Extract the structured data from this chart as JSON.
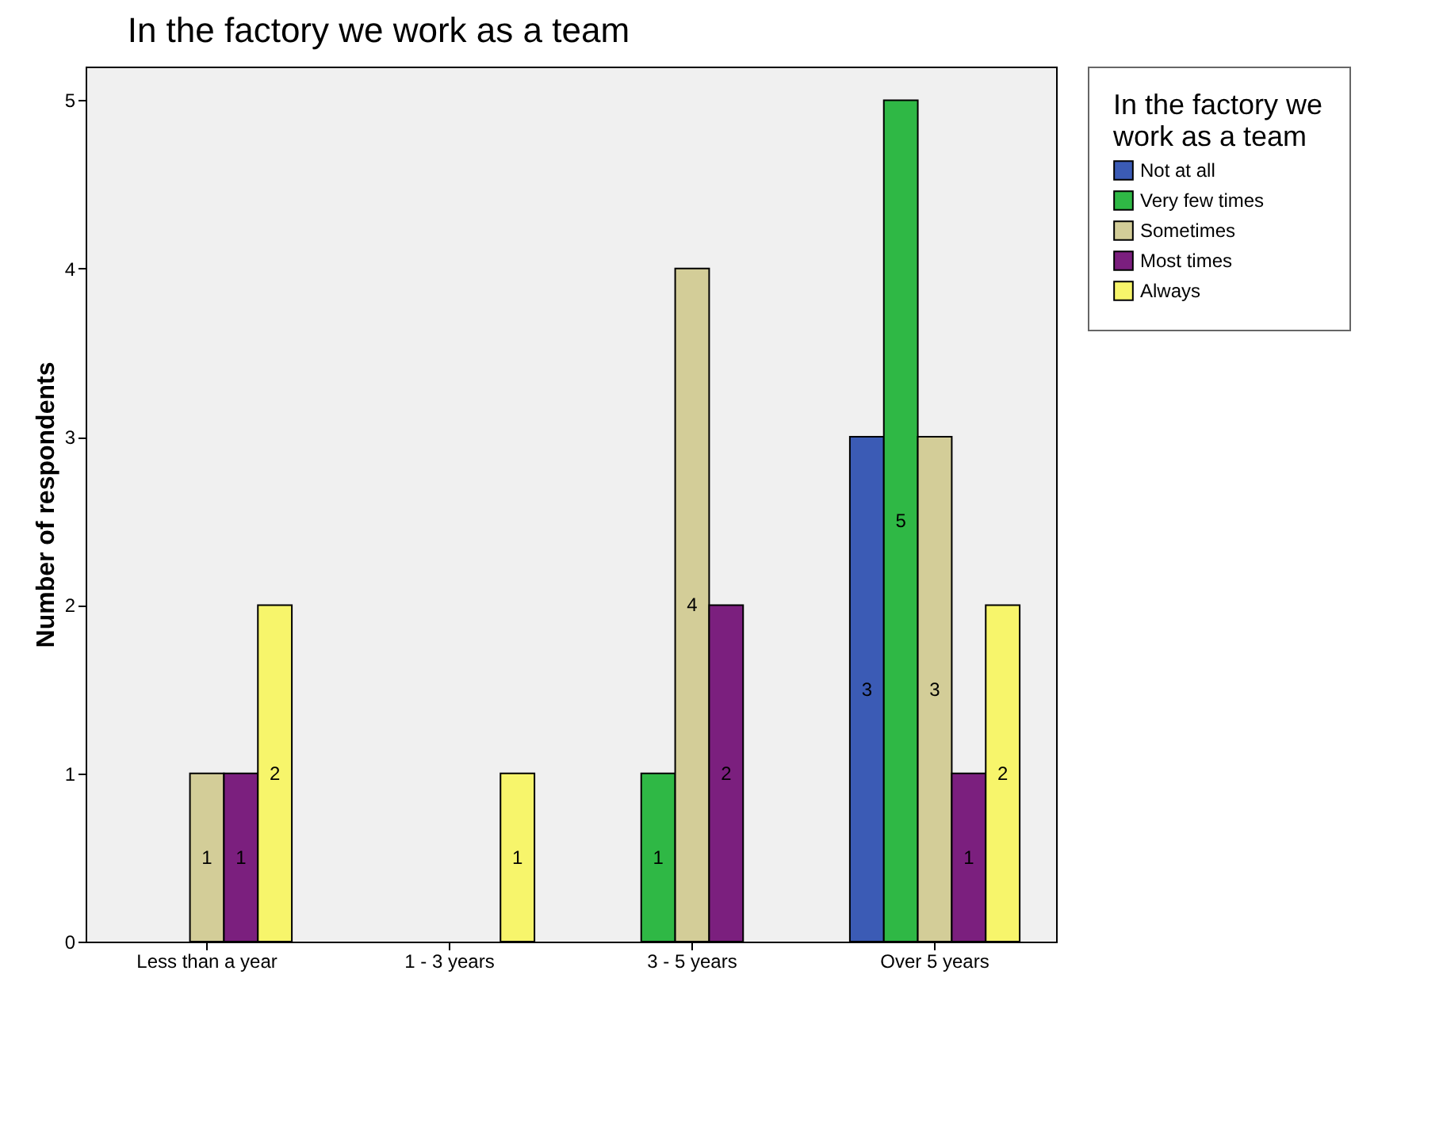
{
  "chart_data": {
    "type": "bar",
    "title": "In the factory we work as a team",
    "ylabel": "Number of respondents",
    "legend_title": "In the factory we work as a team",
    "categories": [
      "Less than a year",
      "1 - 3 years",
      "3 - 5 years",
      "Over 5 years"
    ],
    "series": [
      {
        "name": "Not at all",
        "color": "#3b5bb5",
        "values": [
          null,
          null,
          null,
          3
        ]
      },
      {
        "name": "Very few times",
        "color": "#2fb845",
        "values": [
          null,
          null,
          1,
          5
        ]
      },
      {
        "name": "Sometimes",
        "color": "#d3cd98",
        "values": [
          1,
          null,
          4,
          3
        ]
      },
      {
        "name": "Most times",
        "color": "#7b1f7e",
        "values": [
          1,
          null,
          2,
          1
        ]
      },
      {
        "name": "Always",
        "color": "#f7f56b",
        "values": [
          2,
          1,
          null,
          2
        ]
      }
    ],
    "ylim": [
      0,
      5.2
    ],
    "yticks": [
      0,
      1,
      2,
      3,
      4,
      5
    ],
    "grid": false,
    "legend": "right",
    "data_labels": true
  }
}
